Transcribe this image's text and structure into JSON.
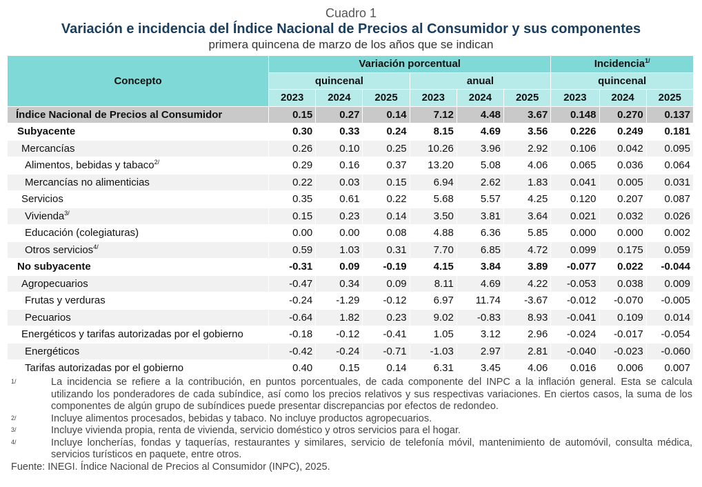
{
  "header": {
    "label": "Cuadro 1",
    "title": "Variación e incidencia del Índice Nacional de Precios al Consumidor y sus componentes",
    "subtitle": "primera quincena de marzo de los años que se indican"
  },
  "table": {
    "concept_header": "Concepto",
    "group_variation": "Variación porcentual",
    "group_incidence": "Incidencia",
    "group_incidence_note": "1/",
    "sub_biweekly_var": "quincenal",
    "sub_annual": "anual",
    "sub_biweekly_inc": "quincenal",
    "years": [
      "2023",
      "2024",
      "2025",
      "2023",
      "2024",
      "2025",
      "2023",
      "2024",
      "2025"
    ],
    "rows": [
      {
        "label": "Índice Nacional de Precios al Consumidor",
        "note": "",
        "values": [
          "0.15",
          "0.27",
          "0.14",
          "7.12",
          "4.48",
          "3.67",
          "0.148",
          "0.270",
          "0.137"
        ]
      },
      {
        "label": "Subyacente",
        "note": "",
        "values": [
          "0.30",
          "0.33",
          "0.24",
          "8.15",
          "4.69",
          "3.56",
          "0.226",
          "0.249",
          "0.181"
        ]
      },
      {
        "label": "Mercancías",
        "note": "",
        "values": [
          "0.26",
          "0.10",
          "0.25",
          "10.26",
          "3.96",
          "2.92",
          "0.106",
          "0.042",
          "0.095"
        ]
      },
      {
        "label": "Alimentos, bebidas y tabaco",
        "note": "2/",
        "values": [
          "0.29",
          "0.16",
          "0.37",
          "13.20",
          "5.08",
          "4.06",
          "0.065",
          "0.036",
          "0.064"
        ]
      },
      {
        "label": "Mercancías no alimenticias",
        "note": "",
        "values": [
          "0.22",
          "0.03",
          "0.15",
          "6.94",
          "2.62",
          "1.83",
          "0.041",
          "0.005",
          "0.031"
        ]
      },
      {
        "label": "Servicios",
        "note": "",
        "values": [
          "0.35",
          "0.61",
          "0.22",
          "5.68",
          "5.57",
          "4.25",
          "0.120",
          "0.207",
          "0.087"
        ]
      },
      {
        "label": "Vivienda",
        "note": "3/",
        "values": [
          "0.15",
          "0.23",
          "0.14",
          "3.50",
          "3.81",
          "3.64",
          "0.021",
          "0.032",
          "0.026"
        ]
      },
      {
        "label": "Educación (colegiaturas)",
        "note": "",
        "values": [
          "0.00",
          "0.00",
          "0.08",
          "4.88",
          "6.36",
          "5.85",
          "0.000",
          "0.000",
          "0.002"
        ]
      },
      {
        "label": "Otros servicios",
        "note": "4/",
        "values": [
          "0.59",
          "1.03",
          "0.31",
          "7.70",
          "6.85",
          "4.72",
          "0.099",
          "0.175",
          "0.059"
        ]
      },
      {
        "label": "No subyacente",
        "note": "",
        "values": [
          "-0.31",
          "0.09",
          "-0.19",
          "4.15",
          "3.84",
          "3.89",
          "-0.077",
          "0.022",
          "-0.044"
        ]
      },
      {
        "label": "Agropecuarios",
        "note": "",
        "values": [
          "-0.47",
          "0.34",
          "0.09",
          "8.11",
          "4.69",
          "4.22",
          "-0.053",
          "0.038",
          "0.009"
        ]
      },
      {
        "label": "Frutas y verduras",
        "note": "",
        "values": [
          "-0.24",
          "-1.29",
          "-0.12",
          "6.97",
          "11.74",
          "-3.67",
          "-0.012",
          "-0.070",
          "-0.005"
        ]
      },
      {
        "label": "Pecuarios",
        "note": "",
        "values": [
          "-0.64",
          "1.82",
          "0.23",
          "9.02",
          "-0.83",
          "8.93",
          "-0.041",
          "0.109",
          "0.014"
        ]
      },
      {
        "label": "Energéticos y tarifas autorizadas por el gobierno",
        "note": "",
        "values": [
          "-0.18",
          "-0.12",
          "-0.41",
          "1.05",
          "3.12",
          "2.96",
          "-0.024",
          "-0.017",
          "-0.054"
        ]
      },
      {
        "label": "Energéticos",
        "note": "",
        "values": [
          "-0.42",
          "-0.24",
          "-0.71",
          "-1.03",
          "2.97",
          "2.81",
          "-0.040",
          "-0.023",
          "-0.060"
        ]
      },
      {
        "label": "Tarifas autorizadas por el gobierno",
        "note": "",
        "values": [
          "0.40",
          "0.15",
          "0.14",
          "6.31",
          "3.45",
          "4.06",
          "0.016",
          "0.006",
          "0.007"
        ]
      }
    ]
  },
  "notes": [
    {
      "mark": "1/",
      "text": "La incidencia se refiere a la contribución, en puntos porcentuales, de cada componente del INPC a la inflación general. Esta se calcula utilizando los ponderadores de cada subíndice, así como los precios relativos y sus respectivas variaciones. En ciertos casos, la suma de los componentes de algún grupo de subíndices puede presentar discrepancias por efectos de redondeo."
    },
    {
      "mark": "2/",
      "text": "Incluye alimentos procesados, bebidas y tabaco. No incluye productos agropecuarios."
    },
    {
      "mark": "3/",
      "text": "Incluye vivienda propia, renta de vivienda, servicio doméstico y otros servicios para el hogar."
    },
    {
      "mark": "4/",
      "text": "Incluye loncherías, fondas y taquerías, restaurantes y similares, servicio de telefonía móvil, mantenimiento de automóvil, consulta médica, servicios turísticos en paquete, entre otros."
    }
  ],
  "source": "Fuente: INEGI. Índice Nacional de Precios al Consumidor (INPC), 2025."
}
